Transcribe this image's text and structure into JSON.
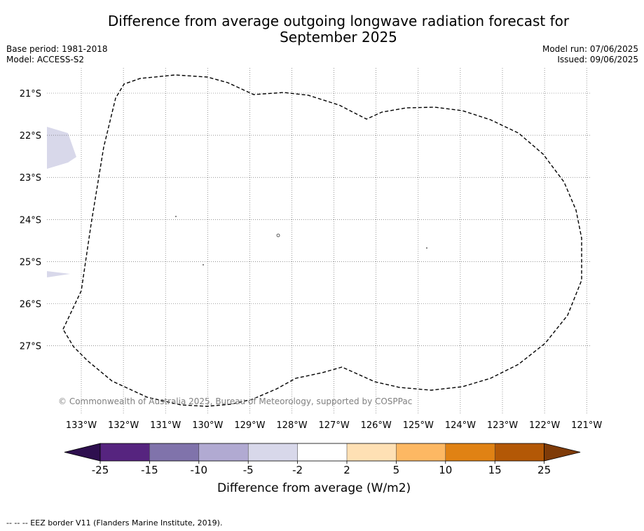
{
  "title": "Difference from average outgoing longwave radiation forecast for\nSeptember 2025",
  "meta": {
    "base_period": "Base period: 1981-2018",
    "model": "Model: ACCESS-S2",
    "model_run": "Model run: 07/06/2025",
    "issued": "Issued: 09/06/2025"
  },
  "map": {
    "lon_labels": [
      "133°W",
      "132°W",
      "131°W",
      "130°W",
      "129°W",
      "128°W",
      "127°W",
      "126°W",
      "125°W",
      "124°W",
      "123°W",
      "122°W",
      "121°W"
    ],
    "lat_labels": [
      "21°S",
      "22°S",
      "23°S",
      "24°S",
      "25°S",
      "26°S",
      "27°S"
    ],
    "copyright": "© Commonwealth of Australia 2025, Bureau of Meteorology, supported by COSPPac",
    "boundary_style": "dashed",
    "anomaly_fill_color": "#d8d8ea",
    "gridlines": true
  },
  "colorbar": {
    "label": "Difference from average (W/m2)",
    "tick_labels": [
      "-25",
      "-15",
      "-10",
      "-5",
      "-2",
      "2",
      "5",
      "10",
      "15",
      "25"
    ],
    "colors": [
      "#2e0f4f",
      "#56247f",
      "#8073ab",
      "#b1aad2",
      "#d8d8ea",
      "#ffffff",
      "#fee0b4",
      "#fdb863",
      "#e08214",
      "#b35806",
      "#7f3b08"
    ]
  },
  "footer": "--  --  -- EEZ border V11 (Flanders Marine Institute, 2019)."
}
